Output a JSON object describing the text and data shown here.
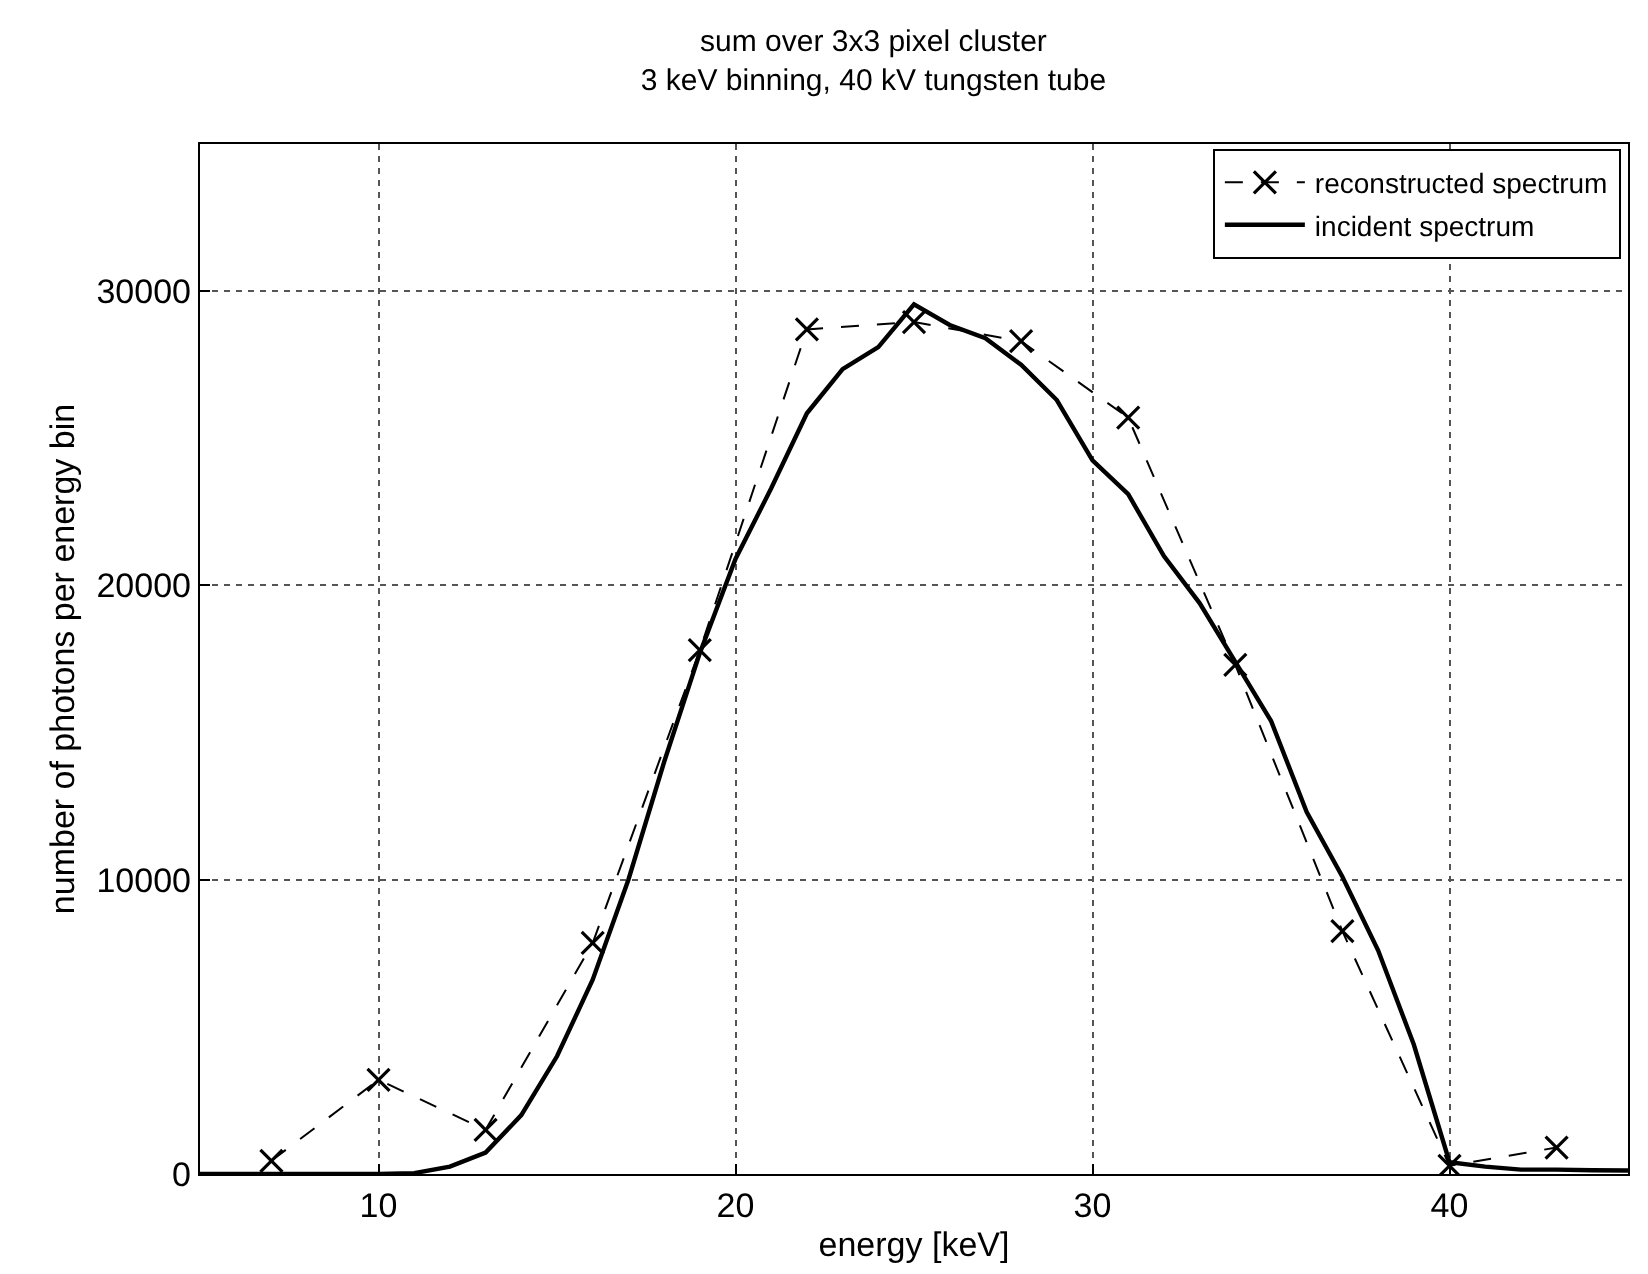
{
  "chart_data": {
    "type": "line",
    "title": "sum over 3x3 pixel cluster",
    "subtitle": "3 keV binning, 40 kV tungsten tube",
    "xlabel": "energy [keV]",
    "ylabel": "number of photons per energy bin",
    "xlim": [
      5,
      45
    ],
    "ylim": [
      0,
      35000
    ],
    "xticks": [
      10,
      20,
      30,
      40
    ],
    "yticks": [
      0,
      10000,
      20000,
      30000
    ],
    "grid": true,
    "legend": "top right",
    "series": [
      {
        "name": "reconstructed spectrum",
        "color": "#000000",
        "marker": "cross",
        "line_style": "dashed",
        "x": [
          7,
          10,
          13,
          16,
          19,
          22,
          25,
          28,
          31,
          34,
          37,
          40,
          43
        ],
        "values": [
          450,
          3200,
          1500,
          7850,
          17800,
          28700,
          28950,
          28300,
          25700,
          17300,
          8250,
          280,
          900
        ]
      },
      {
        "name": "incident spectrum",
        "color": "#000000",
        "marker": "none",
        "line_style": "solid",
        "x": [
          5,
          6,
          7,
          8,
          9,
          10,
          11,
          12,
          13,
          14,
          15,
          16,
          17,
          18,
          19,
          20,
          21,
          22,
          23,
          24,
          25,
          26,
          27,
          28,
          29,
          30,
          31,
          32,
          33,
          34,
          35,
          36,
          37,
          38,
          39,
          40,
          41,
          42,
          43,
          44,
          45
        ],
        "values": [
          0,
          0,
          0,
          0,
          0,
          0,
          30,
          250,
          730,
          2000,
          4000,
          6600,
          10000,
          14000,
          17700,
          20900,
          23300,
          25850,
          27350,
          28100,
          29550,
          28850,
          28400,
          27500,
          26300,
          24250,
          23100,
          21000,
          19400,
          17400,
          15400,
          12300,
          10100,
          7600,
          4400,
          400,
          250,
          150,
          150,
          130,
          120
        ]
      }
    ]
  }
}
